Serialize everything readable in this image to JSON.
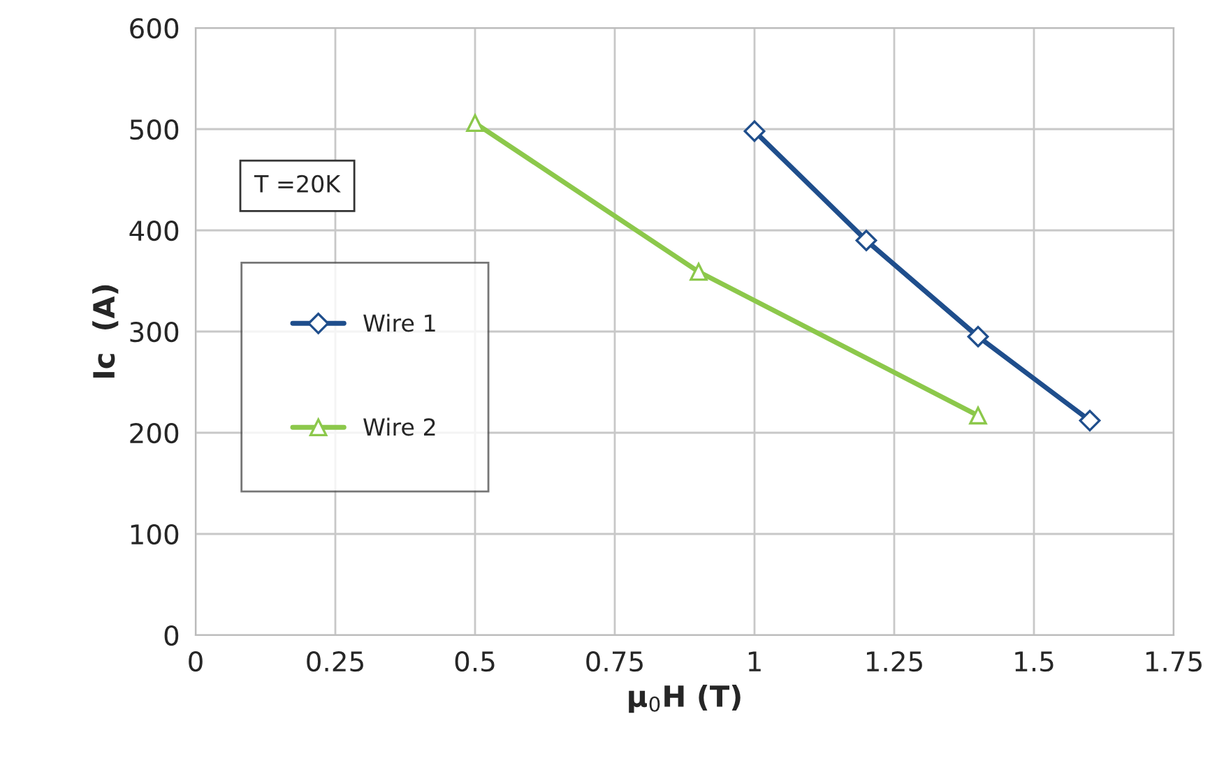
{
  "chart_data": {
    "type": "line",
    "xlabel": "μ$_{0}$H (T)",
    "ylabel": "Ic  (A)",
    "xlim": [
      0,
      1.75
    ],
    "xticks": [
      0,
      0.25,
      0.5,
      0.75,
      1,
      1.25,
      1.5,
      1.75
    ],
    "ylim": [
      0,
      600
    ],
    "yticks": [
      0,
      100,
      200,
      300,
      400,
      500,
      600
    ],
    "grid": true,
    "legend": "center left",
    "line_style": "solid",
    "annotations": [
      "T =20K"
    ],
    "series": [
      {
        "name": "Wire 1",
        "color": "#1f4e8c",
        "marker": "diamond",
        "x": [
          1,
          1.2,
          1.4,
          1.6
        ],
        "values": [
          498,
          390,
          295,
          212
        ]
      },
      {
        "name": "Wire 2",
        "color": "#8cc84b",
        "marker": "triangle",
        "x": [
          0.5,
          0.9,
          1.4
        ],
        "values": [
          506,
          359,
          217
        ]
      }
    ]
  }
}
